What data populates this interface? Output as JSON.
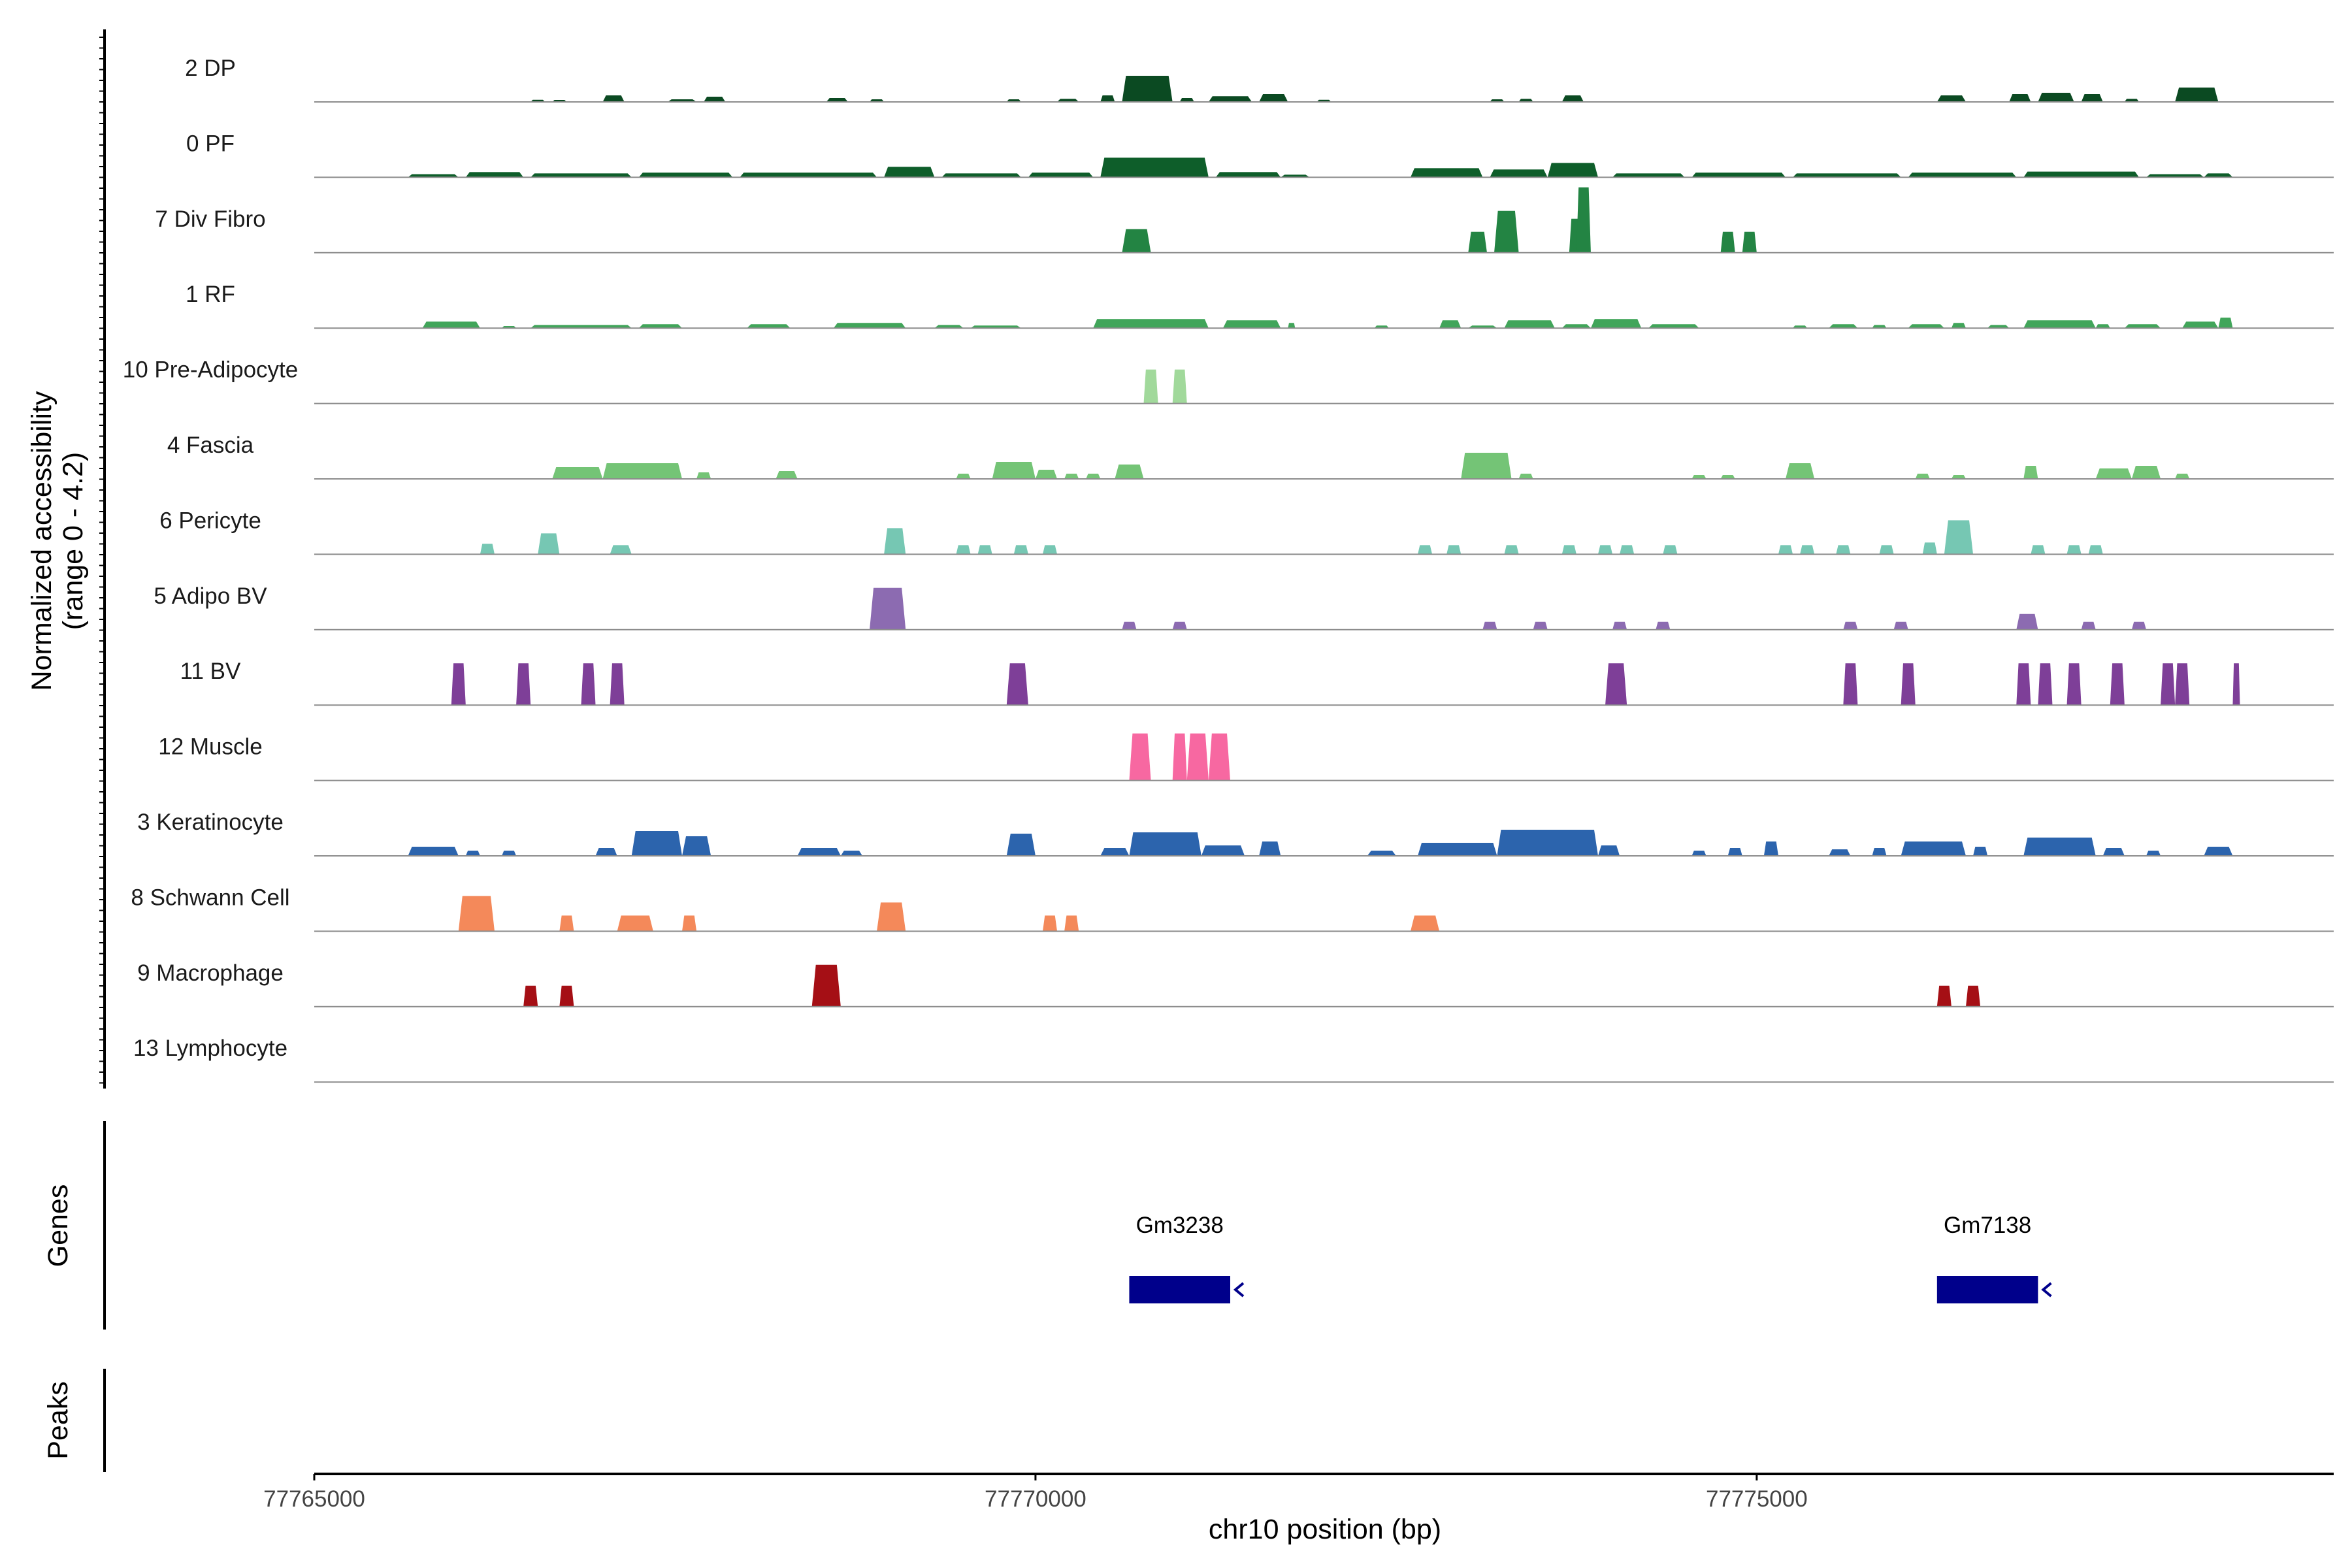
{
  "chart_data": {
    "type": "area",
    "title": "",
    "chromosome": "chr10",
    "xlabel": "chr10 position (bp)",
    "ylabel_line1": "Normalized accessibility",
    "ylabel_line2": "(range 0 - 4.2)",
    "yrange": [
      0,
      4.2
    ],
    "xlim": [
      77765000,
      77779000
    ],
    "x_ticks": [
      77765000,
      77770000,
      77775000
    ],
    "x_tick_labels": [
      "77765000",
      "77770000",
      "77775000"
    ],
    "panel_labels": {
      "genes": "Genes",
      "peaks": "Peaks"
    },
    "tracks": [
      {
        "name": "2 DP",
        "color": "#0b4a22",
        "regions": [
          [
            77766500,
            77766600,
            0.08
          ],
          [
            77766650,
            77766750,
            0.06
          ],
          [
            77767000,
            77767150,
            0.25
          ],
          [
            77767450,
            77767650,
            0.1
          ],
          [
            77767700,
            77767850,
            0.2
          ],
          [
            77768550,
            77768700,
            0.15
          ],
          [
            77768850,
            77768950,
            0.1
          ],
          [
            77769800,
            77769900,
            0.1
          ],
          [
            77770150,
            77770300,
            0.12
          ],
          [
            77770450,
            77770550,
            0.25
          ],
          [
            77770600,
            77770950,
            1.0
          ],
          [
            77771000,
            77771100,
            0.15
          ],
          [
            77771200,
            77771500,
            0.22
          ],
          [
            77771550,
            77771750,
            0.3
          ],
          [
            77771950,
            77772050,
            0.08
          ],
          [
            77773150,
            77773250,
            0.1
          ],
          [
            77773350,
            77773450,
            0.12
          ],
          [
            77773650,
            77773800,
            0.25
          ],
          [
            77776250,
            77776450,
            0.25
          ],
          [
            77776750,
            77776900,
            0.3
          ],
          [
            77776950,
            77777200,
            0.35
          ],
          [
            77777250,
            77777400,
            0.3
          ],
          [
            77777550,
            77777650,
            0.12
          ],
          [
            77777900,
            77778200,
            0.55
          ]
        ]
      },
      {
        "name": "0 PF",
        "color": "#0e5e2a",
        "regions": [
          [
            77765650,
            77766000,
            0.12
          ],
          [
            77766050,
            77766450,
            0.2
          ],
          [
            77766500,
            77767200,
            0.15
          ],
          [
            77767250,
            77767900,
            0.18
          ],
          [
            77767950,
            77768900,
            0.18
          ],
          [
            77768950,
            77769300,
            0.4
          ],
          [
            77769350,
            77769900,
            0.15
          ],
          [
            77769950,
            77770400,
            0.18
          ],
          [
            77770450,
            77771200,
            0.75
          ],
          [
            77771250,
            77771700,
            0.2
          ],
          [
            77771700,
            77771900,
            0.1
          ],
          [
            77772600,
            77773100,
            0.35
          ],
          [
            77773150,
            77773550,
            0.3
          ],
          [
            77773550,
            77773900,
            0.55
          ],
          [
            77774000,
            77774500,
            0.15
          ],
          [
            77774550,
            77775200,
            0.18
          ],
          [
            77775250,
            77776000,
            0.15
          ],
          [
            77776050,
            77776800,
            0.18
          ],
          [
            77776850,
            77777650,
            0.22
          ],
          [
            77777700,
            77778100,
            0.12
          ],
          [
            77778100,
            77778300,
            0.15
          ]
        ]
      },
      {
        "name": "7 Div Fibro",
        "color": "#238443",
        "regions": [
          [
            77770600,
            77770800,
            0.9
          ],
          [
            77773000,
            77773130,
            0.8
          ],
          [
            77773180,
            77773350,
            1.6
          ],
          [
            77773700,
            77773800,
            1.3
          ],
          [
            77773750,
            77773850,
            2.5
          ],
          [
            77774750,
            77774850,
            0.8
          ],
          [
            77774900,
            77775000,
            0.8
          ]
        ]
      },
      {
        "name": "1 RF",
        "color": "#41a55a",
        "regions": [
          [
            77765750,
            77766150,
            0.25
          ],
          [
            77766300,
            77766400,
            0.08
          ],
          [
            77766500,
            77767200,
            0.12
          ],
          [
            77767250,
            77767550,
            0.15
          ],
          [
            77768000,
            77768300,
            0.15
          ],
          [
            77768600,
            77769100,
            0.2
          ],
          [
            77769300,
            77769500,
            0.12
          ],
          [
            77769550,
            77769900,
            0.1
          ],
          [
            77770400,
            77771200,
            0.35
          ],
          [
            77771300,
            77771700,
            0.3
          ],
          [
            77771750,
            77771800,
            0.2
          ],
          [
            77772350,
            77772450,
            0.1
          ],
          [
            77772800,
            77772950,
            0.3
          ],
          [
            77773000,
            77773200,
            0.1
          ],
          [
            77773250,
            77773600,
            0.3
          ],
          [
            77773650,
            77773850,
            0.15
          ],
          [
            77773850,
            77774200,
            0.35
          ],
          [
            77774250,
            77774600,
            0.15
          ],
          [
            77775250,
            77775350,
            0.1
          ],
          [
            77775500,
            77775700,
            0.15
          ],
          [
            77775800,
            77775900,
            0.12
          ],
          [
            77776050,
            77776300,
            0.15
          ],
          [
            77776350,
            77776450,
            0.2
          ],
          [
            77776600,
            77776750,
            0.12
          ],
          [
            77776850,
            77777350,
            0.3
          ],
          [
            77777350,
            77777450,
            0.15
          ],
          [
            77777550,
            77777800,
            0.15
          ],
          [
            77777950,
            77778200,
            0.25
          ],
          [
            77778200,
            77778300,
            0.4
          ]
        ]
      },
      {
        "name": "10 Pre-Adipocyte",
        "color": "#a1d99b",
        "regions": [
          [
            77770750,
            77770850,
            1.3
          ],
          [
            77770950,
            77771050,
            1.3
          ]
        ]
      },
      {
        "name": "4 Fascia",
        "color": "#74c476",
        "regions": [
          [
            77766650,
            77767000,
            0.45
          ],
          [
            77767000,
            77767550,
            0.6
          ],
          [
            77767650,
            77767750,
            0.25
          ],
          [
            77768200,
            77768350,
            0.3
          ],
          [
            77769450,
            77769550,
            0.2
          ],
          [
            77769700,
            77770000,
            0.65
          ],
          [
            77770000,
            77770150,
            0.35
          ],
          [
            77770200,
            77770300,
            0.2
          ],
          [
            77770350,
            77770450,
            0.2
          ],
          [
            77770550,
            77770750,
            0.55
          ],
          [
            77772950,
            77773300,
            1.0
          ],
          [
            77773350,
            77773450,
            0.2
          ],
          [
            77774550,
            77774650,
            0.15
          ],
          [
            77774750,
            77774850,
            0.15
          ],
          [
            77775200,
            77775400,
            0.6
          ],
          [
            77776100,
            77776200,
            0.2
          ],
          [
            77776350,
            77776450,
            0.15
          ],
          [
            77776850,
            77776950,
            0.5
          ],
          [
            77777350,
            77777600,
            0.4
          ],
          [
            77777600,
            77777800,
            0.5
          ],
          [
            77777900,
            77778000,
            0.2
          ]
        ]
      },
      {
        "name": "6 Pericyte",
        "color": "#76c7b3",
        "regions": [
          [
            77766150,
            77766250,
            0.4
          ],
          [
            77766550,
            77766700,
            0.8
          ],
          [
            77767050,
            77767200,
            0.35
          ],
          [
            77768950,
            77769100,
            1.0
          ],
          [
            77769450,
            77769550,
            0.35
          ],
          [
            77769600,
            77769700,
            0.35
          ],
          [
            77769850,
            77769950,
            0.35
          ],
          [
            77770050,
            77770150,
            0.35
          ],
          [
            77772650,
            77772750,
            0.35
          ],
          [
            77772850,
            77772950,
            0.35
          ],
          [
            77773250,
            77773350,
            0.35
          ],
          [
            77773650,
            77773750,
            0.35
          ],
          [
            77773900,
            77774000,
            0.35
          ],
          [
            77774050,
            77774150,
            0.35
          ],
          [
            77774350,
            77774450,
            0.35
          ],
          [
            77775150,
            77775250,
            0.35
          ],
          [
            77775300,
            77775400,
            0.35
          ],
          [
            77775550,
            77775650,
            0.35
          ],
          [
            77775850,
            77775950,
            0.35
          ],
          [
            77776150,
            77776250,
            0.45
          ],
          [
            77776300,
            77776500,
            1.3
          ],
          [
            77776900,
            77777000,
            0.35
          ],
          [
            77777150,
            77777250,
            0.35
          ],
          [
            77777300,
            77777400,
            0.35
          ]
        ]
      },
      {
        "name": "5 Adipo BV",
        "color": "#8c6bb1",
        "regions": [
          [
            77768850,
            77769100,
            1.6
          ],
          [
            77770600,
            77770700,
            0.3
          ],
          [
            77770950,
            77771050,
            0.3
          ],
          [
            77773100,
            77773200,
            0.3
          ],
          [
            77773450,
            77773550,
            0.3
          ],
          [
            77774000,
            77774100,
            0.3
          ],
          [
            77774300,
            77774400,
            0.3
          ],
          [
            77775600,
            77775700,
            0.3
          ],
          [
            77775950,
            77776050,
            0.3
          ],
          [
            77776800,
            77776950,
            0.6
          ],
          [
            77777250,
            77777350,
            0.3
          ],
          [
            77777600,
            77777700,
            0.3
          ]
        ]
      },
      {
        "name": "11 BV",
        "color": "#7e3f98",
        "regions": [
          [
            77765950,
            77766050,
            1.6
          ],
          [
            77766400,
            77766500,
            1.6
          ],
          [
            77766850,
            77766950,
            1.6
          ],
          [
            77767050,
            77767150,
            1.6
          ],
          [
            77769800,
            77769950,
            1.6
          ],
          [
            77773950,
            77774100,
            1.6
          ],
          [
            77775600,
            77775700,
            1.6
          ],
          [
            77776000,
            77776100,
            1.6
          ],
          [
            77776800,
            77776900,
            1.6
          ],
          [
            77776950,
            77777050,
            1.6
          ],
          [
            77777150,
            77777250,
            1.6
          ],
          [
            77777450,
            77777550,
            1.6
          ],
          [
            77777800,
            77777900,
            1.6
          ],
          [
            77777900,
            77778000,
            1.6
          ],
          [
            77778300,
            77778350,
            1.6
          ]
        ]
      },
      {
        "name": "12 Muscle",
        "color": "#f768a1",
        "regions": [
          [
            77770650,
            77770800,
            1.8
          ],
          [
            77770950,
            77771050,
            1.8
          ],
          [
            77771050,
            77771200,
            1.8
          ],
          [
            77771200,
            77771350,
            1.8
          ]
        ]
      },
      {
        "name": "3 Keratinocyte",
        "color": "#2c64ad",
        "regions": [
          [
            77765650,
            77766000,
            0.35
          ],
          [
            77766050,
            77766150,
            0.2
          ],
          [
            77766300,
            77766400,
            0.2
          ],
          [
            77766950,
            77767100,
            0.3
          ],
          [
            77767200,
            77767550,
            0.95
          ],
          [
            77767550,
            77767750,
            0.75
          ],
          [
            77768350,
            77768650,
            0.3
          ],
          [
            77768650,
            77768800,
            0.2
          ],
          [
            77769800,
            77770000,
            0.85
          ],
          [
            77770450,
            77770650,
            0.3
          ],
          [
            77770650,
            77771150,
            0.9
          ],
          [
            77771150,
            77771450,
            0.4
          ],
          [
            77771550,
            77771700,
            0.55
          ],
          [
            77772300,
            77772500,
            0.2
          ],
          [
            77772650,
            77773200,
            0.5
          ],
          [
            77773200,
            77773900,
            1.0
          ],
          [
            77773900,
            77774050,
            0.4
          ],
          [
            77774550,
            77774650,
            0.2
          ],
          [
            77774800,
            77774900,
            0.3
          ],
          [
            77775050,
            77775150,
            0.55
          ],
          [
            77775500,
            77775650,
            0.25
          ],
          [
            77775800,
            77775900,
            0.3
          ],
          [
            77776000,
            77776450,
            0.55
          ],
          [
            77776500,
            77776600,
            0.35
          ],
          [
            77776850,
            77777350,
            0.7
          ],
          [
            77777400,
            77777550,
            0.3
          ],
          [
            77777700,
            77777800,
            0.2
          ],
          [
            77778100,
            77778300,
            0.35
          ]
        ]
      },
      {
        "name": "8 Schwann Cell",
        "color": "#f4895a",
        "regions": [
          [
            77766000,
            77766250,
            1.35
          ],
          [
            77766700,
            77766800,
            0.6
          ],
          [
            77767100,
            77767350,
            0.6
          ],
          [
            77767550,
            77767650,
            0.6
          ],
          [
            77768900,
            77769100,
            1.1
          ],
          [
            77770050,
            77770150,
            0.6
          ],
          [
            77770200,
            77770300,
            0.6
          ],
          [
            77772600,
            77772800,
            0.6
          ]
        ]
      },
      {
        "name": "9 Macrophage",
        "color": "#a50f15",
        "regions": [
          [
            77766450,
            77766550,
            0.8
          ],
          [
            77766700,
            77766800,
            0.8
          ],
          [
            77768450,
            77768650,
            1.6
          ],
          [
            77776250,
            77776350,
            0.8
          ],
          [
            77776450,
            77776550,
            0.8
          ]
        ]
      },
      {
        "name": "13 Lymphocyte",
        "color": "#000000",
        "regions": []
      }
    ],
    "genes": [
      {
        "name": "Gm3238",
        "start": 77770650,
        "end": 77771350,
        "strand": "-",
        "color": "#00008b"
      },
      {
        "name": "Gm7138",
        "start": 77776250,
        "end": 77776950,
        "strand": "-",
        "color": "#00008b"
      }
    ],
    "peaks": []
  }
}
